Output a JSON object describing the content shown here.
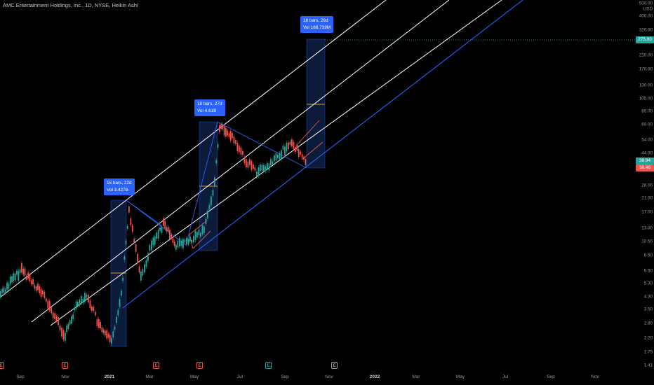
{
  "title": "AMC Entertainment Holdings, Inc., 1D, NYSE, Heikin Ashi",
  "price_axis": {
    "currency": "USD",
    "ticks": [
      "500.00",
      "400.00",
      "320.00",
      "210.00",
      "170.00",
      "130.00",
      "105.00",
      "85.00",
      "69.00",
      "54.00",
      "44.00",
      "26.00",
      "21.00",
      "17.00",
      "13.00",
      "10.50",
      "8.50",
      "6.50",
      "5.30",
      "4.30",
      "3.50",
      "2.80",
      "2.20",
      "1.75",
      "1.41"
    ],
    "badges": [
      {
        "label": "275.00",
        "color": "#26a69a"
      },
      {
        "label": "38.94",
        "color": "#26a69a"
      },
      {
        "label": "38.46",
        "color": "#ef5350"
      }
    ]
  },
  "time_axis": {
    "ticks": [
      {
        "label": "Sep",
        "year": false
      },
      {
        "label": "Nov",
        "year": false
      },
      {
        "label": "2021",
        "year": true
      },
      {
        "label": "Mar",
        "year": false
      },
      {
        "label": "May",
        "year": false
      },
      {
        "label": "Jul",
        "year": false
      },
      {
        "label": "Sep",
        "year": false
      },
      {
        "label": "Nov",
        "year": false
      },
      {
        "label": "2022",
        "year": true
      },
      {
        "label": "Mar",
        "year": false
      },
      {
        "label": "May",
        "year": false
      },
      {
        "label": "Jul",
        "year": false
      },
      {
        "label": "Sep",
        "year": false
      },
      {
        "label": "Nov",
        "year": false
      }
    ]
  },
  "measurements": [
    {
      "bars": "15 bars, 22d",
      "vol": "Vol 3.427B"
    },
    {
      "bars": "18 bars, 27d",
      "vol": "Vol 4.61B"
    },
    {
      "bars": "18 bars, 26d",
      "vol": "Vol 168.739M"
    }
  ],
  "events": [
    {
      "label": "E",
      "color": "#ef5350"
    },
    {
      "label": "E",
      "color": "#ef5350"
    },
    {
      "label": "E",
      "color": "#ef5350"
    },
    {
      "label": "E",
      "color": "#ef5350"
    },
    {
      "label": "E",
      "color": "#26a69a"
    },
    {
      "label": "E",
      "color": "#9e9e9e"
    }
  ],
  "colors": {
    "up": "#26a69a",
    "down": "#ef5350",
    "channel": "#ffffff",
    "trendline": "#2962ff",
    "box": "#0d1b3a"
  }
}
